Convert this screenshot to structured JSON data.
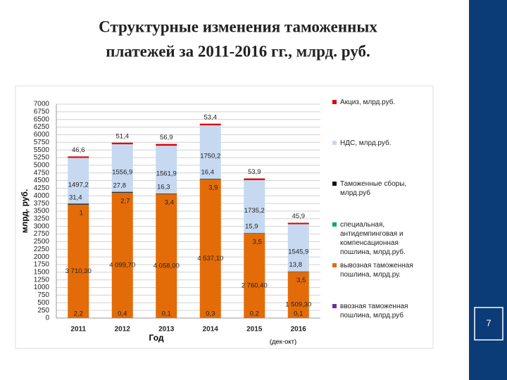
{
  "title_lines": [
    "Структурные изменения таможенных",
    "платежей за 2011-2016 гг., млрд. руб."
  ],
  "slide_number": "7",
  "chart_data": {
    "type": "stacked_bar",
    "y_label": "млрд. руб.",
    "x_label": "Год",
    "x_note": "(дек-окт)",
    "categories": [
      "2011",
      "2012",
      "2013",
      "2014",
      "2015",
      "2016"
    ],
    "ylim": [
      0,
      7000
    ],
    "yticks": [
      0,
      250,
      500,
      750,
      1000,
      1250,
      1500,
      1750,
      2000,
      2250,
      2500,
      2750,
      3000,
      3250,
      3500,
      3750,
      4000,
      4250,
      4500,
      4750,
      5000,
      5250,
      5500,
      5750,
      6000,
      6250,
      6500,
      6750,
      7000
    ],
    "grid": true,
    "series": [
      {
        "name": "ввозная таможенная пошлина, млрд.руб",
        "color": "#7030a0",
        "values": [
          2.2,
          0.4,
          0.1,
          0.3,
          0.2,
          0.1
        ],
        "value_labels": [
          "2,2",
          "0,4",
          "0,1",
          "0,3",
          "0,2",
          "0,1"
        ]
      },
      {
        "name": "вывозная таможенная пошлина, млрд.ру.",
        "color": "#e36c09",
        "values": [
          3710.3,
          4099.7,
          4058.0,
          4537.1,
          2760.4,
          1509.3
        ],
        "value_labels": [
          "3 710,30",
          "4 099,70",
          "4 058,00",
          "4 537,10",
          "2 760,40",
          "1 509,30"
        ]
      },
      {
        "name": "специальная, антидемпинговая и компенсационная пошлина, млрд.руб.",
        "color": "#00b050",
        "values": [
          1,
          2.7,
          3.4,
          3.9,
          3.5,
          3.5
        ],
        "value_labels": [
          "1",
          "2,7",
          "3,4",
          "3,9",
          "3,5",
          "3,5"
        ]
      },
      {
        "name": "Таможенные сборы, млрд.руб",
        "color": "#111111",
        "values": [
          31.4,
          27.8,
          16.3,
          16.4,
          15.9,
          13.8
        ],
        "value_labels": [
          "31,4",
          "27,8",
          "16,3",
          "16,4",
          "15,9",
          "13,8"
        ]
      },
      {
        "name": "НДС, млрд.руб.",
        "color": "#c6d9f1",
        "values": [
          1497.2,
          1556.9,
          1561.9,
          1750.2,
          1735.2,
          1545.9
        ],
        "value_labels": [
          "1497,2",
          "1556,9",
          "1561,9",
          "1750,2",
          "1735,2",
          "1545,9"
        ]
      },
      {
        "name": "Акциз, млрд.руб.",
        "color": "#e00000",
        "values": [
          46.6,
          51.4,
          56.9,
          53.4,
          53.9,
          45.9
        ],
        "value_labels": [
          "46,6",
          "51,4",
          "56,9",
          "53,4",
          "53,9",
          "45,9"
        ]
      }
    ]
  }
}
